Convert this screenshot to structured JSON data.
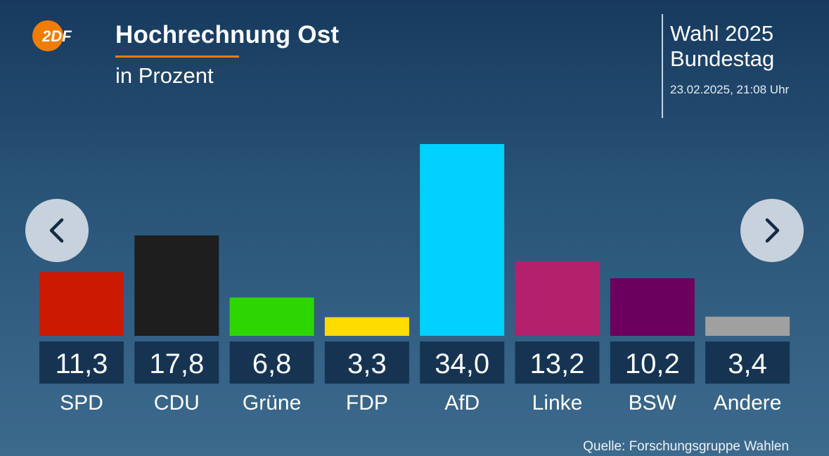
{
  "header": {
    "logo_text": "2DF",
    "title": "Hochrechnung Ost",
    "subtitle": "in Prozent",
    "election_line1": "Wahl 2025",
    "election_line2": "Bundestag",
    "timestamp": "23.02.2025, 21:08 Uhr"
  },
  "footer": {
    "source": "Quelle: Forschungsgruppe Wahlen"
  },
  "colors": {
    "accent": "#f07d00",
    "value_box": "#163452"
  },
  "icons": {
    "prev": "chevron-left-icon",
    "next": "chevron-right-icon"
  },
  "chart_data": {
    "type": "bar",
    "title": "Hochrechnung Ost",
    "subtitle": "in Prozent",
    "categories": [
      "SPD",
      "CDU",
      "Grüne",
      "FDP",
      "AfD",
      "Linke",
      "BSW",
      "Andere"
    ],
    "values": [
      11.3,
      17.8,
      6.8,
      3.3,
      34.0,
      13.2,
      10.2,
      3.4
    ],
    "value_labels": [
      "11,3",
      "17,8",
      "6,8",
      "3,3",
      "34,0",
      "13,2",
      "10,2",
      "3,4"
    ],
    "colors": [
      "#cc1a00",
      "#1e1e1e",
      "#2ed600",
      "#ffdc00",
      "#00d1ff",
      "#b3206b",
      "#6b005f",
      "#a0a0a0"
    ],
    "ylim": [
      0,
      34.0
    ],
    "grid": false,
    "legend": "none"
  }
}
